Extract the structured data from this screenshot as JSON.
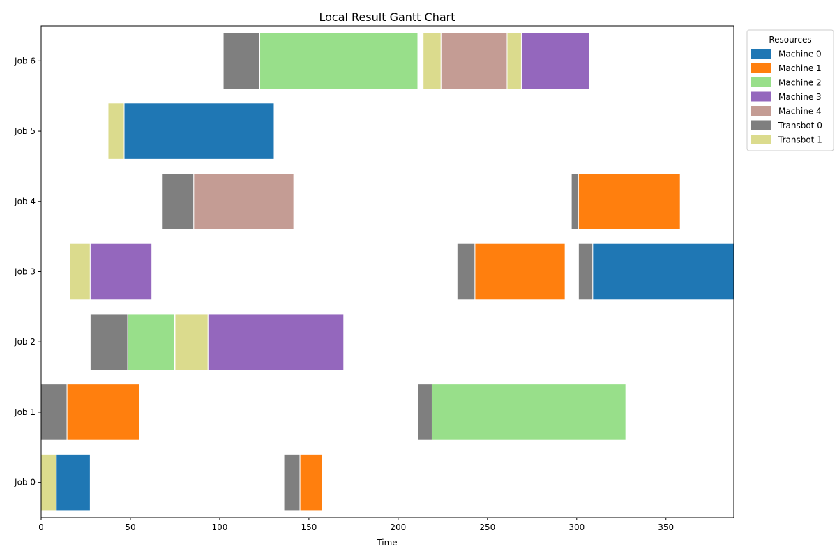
{
  "chart_data": {
    "type": "gantt",
    "title": "Local Result Gantt Chart",
    "xlabel": "Time",
    "ylabel": "",
    "xlim": [
      0,
      388
    ],
    "xticks": [
      0,
      50,
      100,
      150,
      200,
      250,
      300,
      350
    ],
    "grid": false,
    "legend": {
      "title": "Resources",
      "placement": "outside-top-right",
      "entries": [
        {
          "name": "Machine 0",
          "color": "#1f77b4"
        },
        {
          "name": "Machine 1",
          "color": "#ff7f0e"
        },
        {
          "name": "Machine 2",
          "color": "#98df8a"
        },
        {
          "name": "Machine 3",
          "color": "#9467bd"
        },
        {
          "name": "Machine 4",
          "color": "#c49c94"
        },
        {
          "name": "Transbot 0",
          "color": "#7f7f7f"
        },
        {
          "name": "Transbot 1",
          "color": "#dbdb8d"
        }
      ]
    },
    "jobs": [
      "Job 0",
      "Job 1",
      "Job 2",
      "Job 3",
      "Job 4",
      "Job 5",
      "Job 6"
    ],
    "tasks": [
      {
        "job": "Job 0",
        "resource": "Transbot 1",
        "start": 0,
        "end": 8.5
      },
      {
        "job": "Job 0",
        "resource": "Machine 0",
        "start": 8.5,
        "end": 27.5
      },
      {
        "job": "Job 0",
        "resource": "Transbot 0",
        "start": 136,
        "end": 145
      },
      {
        "job": "Job 0",
        "resource": "Machine 1",
        "start": 145,
        "end": 157.5
      },
      {
        "job": "Job 1",
        "resource": "Transbot 0",
        "start": 0,
        "end": 14.5
      },
      {
        "job": "Job 1",
        "resource": "Machine 1",
        "start": 14.5,
        "end": 55
      },
      {
        "job": "Job 1",
        "resource": "Transbot 0",
        "start": 211,
        "end": 219
      },
      {
        "job": "Job 1",
        "resource": "Machine 2",
        "start": 219,
        "end": 327.5
      },
      {
        "job": "Job 2",
        "resource": "Transbot 0",
        "start": 27.5,
        "end": 48.5
      },
      {
        "job": "Job 2",
        "resource": "Machine 2",
        "start": 48.5,
        "end": 74.5
      },
      {
        "job": "Job 2",
        "resource": "Transbot 1",
        "start": 75,
        "end": 93.5
      },
      {
        "job": "Job 2",
        "resource": "Machine 3",
        "start": 93.5,
        "end": 169.5
      },
      {
        "job": "Job 3",
        "resource": "Transbot 1",
        "start": 16,
        "end": 27.5
      },
      {
        "job": "Job 3",
        "resource": "Machine 3",
        "start": 27.5,
        "end": 62
      },
      {
        "job": "Job 3",
        "resource": "Transbot 0",
        "start": 233,
        "end": 243
      },
      {
        "job": "Job 3",
        "resource": "Machine 1",
        "start": 243,
        "end": 293.5
      },
      {
        "job": "Job 3",
        "resource": "Transbot 0",
        "start": 301,
        "end": 309
      },
      {
        "job": "Job 3",
        "resource": "Machine 0",
        "start": 309,
        "end": 388
      },
      {
        "job": "Job 4",
        "resource": "Transbot 0",
        "start": 67.5,
        "end": 85.5
      },
      {
        "job": "Job 4",
        "resource": "Machine 4",
        "start": 85.5,
        "end": 141.5
      },
      {
        "job": "Job 4",
        "resource": "Transbot 0",
        "start": 297,
        "end": 301
      },
      {
        "job": "Job 4",
        "resource": "Machine 1",
        "start": 301,
        "end": 358
      },
      {
        "job": "Job 5",
        "resource": "Transbot 1",
        "start": 37.5,
        "end": 46.5
      },
      {
        "job": "Job 5",
        "resource": "Machine 0",
        "start": 46.5,
        "end": 130.5
      },
      {
        "job": "Job 6",
        "resource": "Transbot 0",
        "start": 102,
        "end": 122.5
      },
      {
        "job": "Job 6",
        "resource": "Machine 2",
        "start": 122.5,
        "end": 211
      },
      {
        "job": "Job 6",
        "resource": "Transbot 1",
        "start": 214,
        "end": 224
      },
      {
        "job": "Job 6",
        "resource": "Machine 4",
        "start": 224,
        "end": 261
      },
      {
        "job": "Job 6",
        "resource": "Transbot 1",
        "start": 261,
        "end": 269
      },
      {
        "job": "Job 6",
        "resource": "Machine 3",
        "start": 269,
        "end": 307
      }
    ]
  }
}
